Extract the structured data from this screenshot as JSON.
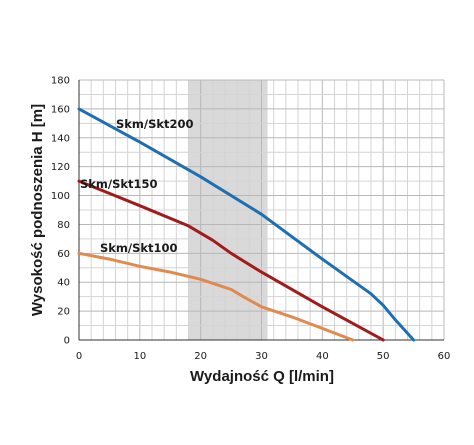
{
  "chart_data": {
    "type": "line",
    "title": "",
    "xlabel": "Wydajność Q [l/min]",
    "ylabel": "Wysokość podnoszenia H [m]",
    "xlim": [
      0,
      60
    ],
    "ylim": [
      0,
      180
    ],
    "x_ticks": [
      0,
      10,
      20,
      30,
      40,
      50,
      60
    ],
    "y_ticks": [
      0,
      20,
      40,
      60,
      80,
      100,
      120,
      140,
      160,
      180
    ],
    "x_minor_step": 2,
    "y_minor_step": 10,
    "grid": true,
    "shaded_x_range": [
      18,
      31
    ],
    "shade_color": "#d9d9d9",
    "series": [
      {
        "name": "Skm/Skt200",
        "color": "#1f6fb0",
        "x": [
          0,
          10,
          20,
          30,
          40,
          48,
          50,
          52,
          55
        ],
        "y": [
          160,
          137,
          113,
          87,
          56,
          32,
          24,
          14,
          0
        ]
      },
      {
        "name": "Skm/Skt150",
        "color": "#a01c1c",
        "x": [
          0,
          10,
          18,
          22,
          25,
          30,
          40,
          50
        ],
        "y": [
          110,
          93,
          79,
          69,
          60,
          47,
          23,
          0
        ]
      },
      {
        "name": "Skm/Skt100",
        "color": "#e08a4f",
        "x": [
          0,
          5,
          10,
          15,
          20,
          25,
          27,
          30,
          35,
          40,
          45
        ],
        "y": [
          60,
          56,
          51,
          47,
          42,
          35,
          30,
          23,
          16,
          8,
          0
        ]
      }
    ]
  }
}
